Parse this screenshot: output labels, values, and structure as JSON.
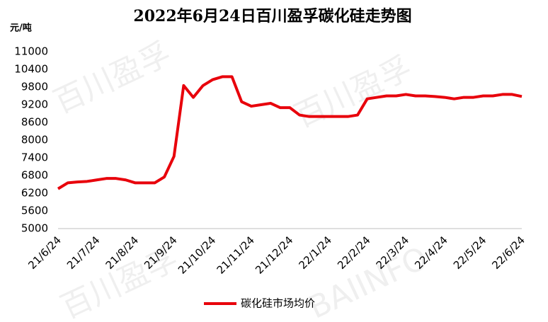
{
  "chart_data": {
    "type": "line",
    "title": "2022年6月24日百川盈孚碳化硅走势图",
    "y_label": "元/吨",
    "watermark": [
      "百川盈孚",
      "BAIINFO"
    ],
    "categories": [
      "21/6/24",
      null,
      null,
      null,
      "21/7/24",
      null,
      null,
      null,
      "21/8/24",
      null,
      null,
      null,
      "21/9/24",
      null,
      null,
      null,
      "21/10/24",
      null,
      null,
      null,
      "21/11/24",
      null,
      null,
      null,
      "21/12/24",
      null,
      null,
      null,
      "22/1/24",
      null,
      null,
      null,
      "22/2/24",
      null,
      null,
      null,
      "22/3/24",
      null,
      null,
      null,
      "22/4/24",
      null,
      null,
      null,
      "22/5/24",
      null,
      null,
      null,
      "22/6/24"
    ],
    "series": [
      {
        "name": "碳化硅市场均价",
        "color": "#e8000b",
        "values": [
          6350,
          6550,
          6580,
          6600,
          6650,
          6700,
          6700,
          6650,
          6550,
          6550,
          6550,
          6750,
          7450,
          9850,
          9450,
          9850,
          10050,
          10150,
          10150,
          9300,
          9150,
          9200,
          9250,
          9100,
          9100,
          8850,
          8800,
          8800,
          8800,
          8800,
          8800,
          8850,
          9400,
          9450,
          9500,
          9500,
          9550,
          9500,
          9500,
          9480,
          9450,
          9400,
          9450,
          9450,
          9500,
          9500,
          9550,
          9550,
          9480
        ]
      }
    ],
    "ylim": [
      5000,
      11000
    ],
    "yticks": [
      5000,
      5600,
      6200,
      6800,
      7400,
      8000,
      8600,
      9200,
      9800,
      10400,
      11000
    ],
    "grid": false,
    "legend": "bottom"
  }
}
